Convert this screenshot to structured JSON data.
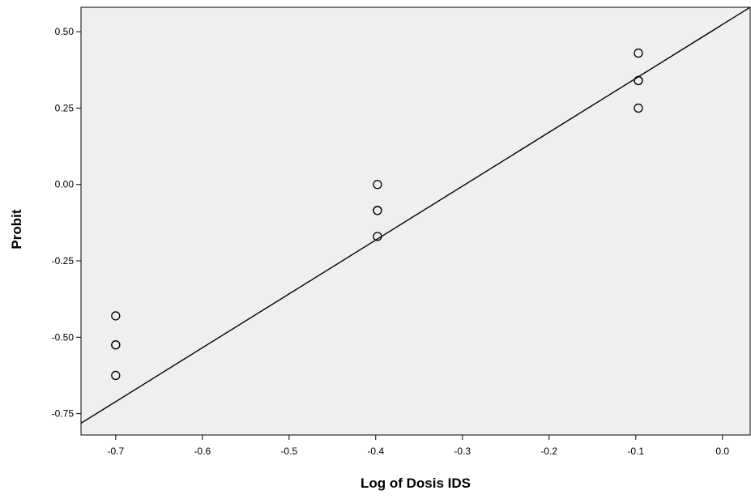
{
  "chart_data": {
    "type": "scatter",
    "title": "",
    "xlabel": "Log of Dosis IDS",
    "ylabel": "Probit",
    "xlim": [
      -0.74,
      0.032
    ],
    "ylim": [
      -0.82,
      0.58
    ],
    "x_ticks": [
      -0.7,
      -0.6,
      -0.5,
      -0.4,
      -0.3,
      -0.2,
      -0.1,
      0.0
    ],
    "x_tick_labels": [
      "-0.7",
      "-0.6",
      "-0.5",
      "-0.4",
      "-0.3",
      "-0.2",
      "-0.1",
      "0.0"
    ],
    "y_ticks": [
      0.5,
      0.25,
      0.0,
      -0.25,
      -0.5,
      -0.75
    ],
    "y_tick_labels": [
      "0.50",
      "0.25",
      "0.00",
      "-0.25",
      "-0.50",
      "-0.75"
    ],
    "grid": false,
    "background": "#efefef",
    "points": [
      {
        "x": -0.7,
        "y": -0.43
      },
      {
        "x": -0.7,
        "y": -0.525
      },
      {
        "x": -0.7,
        "y": -0.525
      },
      {
        "x": -0.7,
        "y": -0.625
      },
      {
        "x": -0.398,
        "y": 0.0
      },
      {
        "x": -0.398,
        "y": -0.085
      },
      {
        "x": -0.398,
        "y": -0.085
      },
      {
        "x": -0.398,
        "y": -0.17
      },
      {
        "x": -0.097,
        "y": 0.43
      },
      {
        "x": -0.097,
        "y": 0.34
      },
      {
        "x": -0.097,
        "y": 0.34
      },
      {
        "x": -0.097,
        "y": 0.25
      }
    ],
    "fit_line": {
      "slope": 1.7636,
      "intercept": 0.5236
    }
  }
}
